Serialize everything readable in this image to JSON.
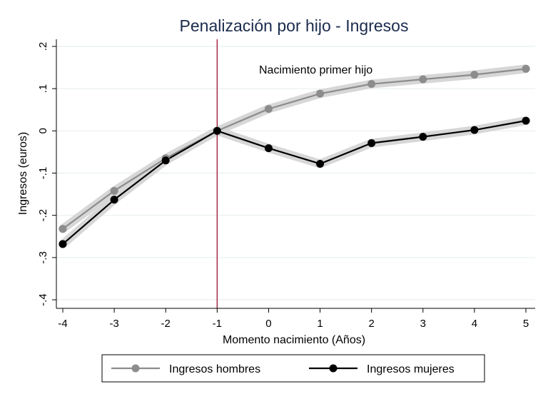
{
  "chart_data": {
    "type": "line",
    "title": "Penalización por hijo - Ingresos",
    "xlabel": "Momento nacimiento (Años)",
    "ylabel": "Ingresos (euros)",
    "x": [
      -4,
      -3,
      -2,
      -1,
      0,
      1,
      2,
      3,
      4,
      5
    ],
    "x_tick_labels": [
      "-4",
      "-3",
      "-2",
      "-1",
      "0",
      "1",
      "2",
      "3",
      "4",
      "5"
    ],
    "y_ticks": [
      0.2,
      0.1,
      0,
      -0.1,
      -0.2,
      -0.3,
      -0.4
    ],
    "y_tick_labels": [
      ".2",
      ".1",
      "0",
      "-.1",
      "-.2",
      "-.3",
      "-.4"
    ],
    "xlim": [
      -4,
      5
    ],
    "ylim": [
      -0.4,
      0.2
    ],
    "grid": true,
    "legend_position": "bottom",
    "annotation": {
      "text": "Nacimiento primer hijo",
      "x": -1
    },
    "series": [
      {
        "name": "Ingresos hombres",
        "color": "#8c8c8c",
        "values": [
          -0.232,
          -0.142,
          -0.065,
          0.0,
          0.052,
          0.088,
          0.111,
          0.122,
          0.133,
          0.147
        ]
      },
      {
        "name": "Ingresos mujeres",
        "color": "#000000",
        "values": [
          -0.268,
          -0.163,
          -0.07,
          0.0,
          -0.041,
          -0.078,
          -0.029,
          -0.014,
          0.002,
          0.024
        ]
      }
    ],
    "colors": {
      "ci_band": "#d7d7d7",
      "grid": "#e9efef",
      "reference_line": "#a3203e",
      "title": "#1a2b4c"
    }
  }
}
